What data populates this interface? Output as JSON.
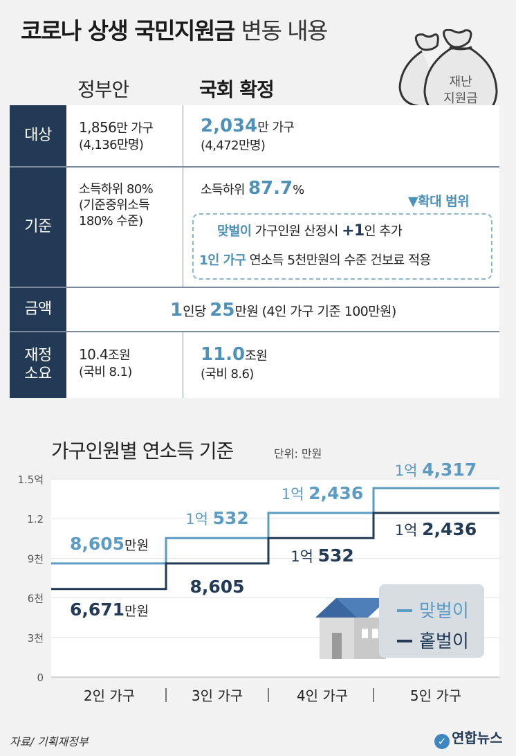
{
  "title_bold": "코로나 상생 국민지원금",
  "title_light": "변동 내용",
  "columns": {
    "government": "정부안",
    "national": "국회 확정"
  },
  "bag_label": [
    "재난",
    "지원금"
  ],
  "rows": {
    "target": {
      "label": "대상",
      "gov_main_num": "1,856",
      "gov_main_unit": "만 가구",
      "gov_sub": "(4,136만명)",
      "nat_main_num": "2,034",
      "nat_main_unit": "만 가구",
      "nat_sub": "(4,472만명)"
    },
    "criteria": {
      "label": "기준",
      "gov_lines": [
        "소득하위 80%",
        "(기준중위소득",
        "180% 수준)"
      ],
      "nat_prefix": "소득하위 ",
      "nat_value": "87.7",
      "nat_suffix": "%",
      "expand_label": "▼확대 범위",
      "dual_income": "맞벌이",
      "dual_text_a": " 가구인원 산정시 ",
      "dual_plus": "+1",
      "dual_text_b": "인 추가",
      "single_person": "1인 가구",
      "single_text": " 연소득 5천만원의 수준 건보료 적용"
    },
    "amount": {
      "label": "금액",
      "num1": "1",
      "text1": "인당 ",
      "num2": "25",
      "text2": "만원 (4인 가구 기준 100만원)"
    },
    "budget": {
      "label_line1": "재정",
      "label_line2": "소요",
      "gov_num": "10.4",
      "gov_unit": "조원",
      "gov_sub": "(국비 8.1)",
      "nat_num": "11.0",
      "nat_unit": "조원",
      "nat_sub": "(국비 8.6)"
    }
  },
  "chart_title": "가구인원별 연소득 기준",
  "chart_unit": "단위: 만원",
  "chart_data": {
    "type": "line",
    "step": true,
    "categories": [
      "2인 가구",
      "3인 가구",
      "4인 가구",
      "5인 가구"
    ],
    "y_ticks": [
      "0",
      "3천",
      "6천",
      "9천",
      "1.2",
      "1.5억"
    ],
    "ylim": [
      0,
      15000
    ],
    "series": [
      {
        "name": "맞벌이",
        "color": "#5b9bc4",
        "values": [
          8605,
          10532,
          12436,
          14317
        ],
        "labels": [
          [
            "8,605",
            "만원"
          ],
          [
            "1억 ",
            "532"
          ],
          [
            "1억 ",
            "2,436"
          ],
          [
            "1억 ",
            "4,317"
          ]
        ]
      },
      {
        "name": "홑벌이",
        "color": "#223a55",
        "values": [
          6671,
          8605,
          10532,
          12436
        ],
        "labels": [
          [
            "6,671",
            "만원"
          ],
          [
            "8,605",
            ""
          ],
          [
            "1억 ",
            "532"
          ],
          [
            "1억 ",
            "2,436"
          ]
        ]
      }
    ],
    "legend_position": "bottom-right"
  },
  "source": "자료/ 기획재정부",
  "logo": "연합뉴스",
  "colors": {
    "navy": "#223a55",
    "blue": "#5b9bc4",
    "background": "#f2f2f2"
  }
}
